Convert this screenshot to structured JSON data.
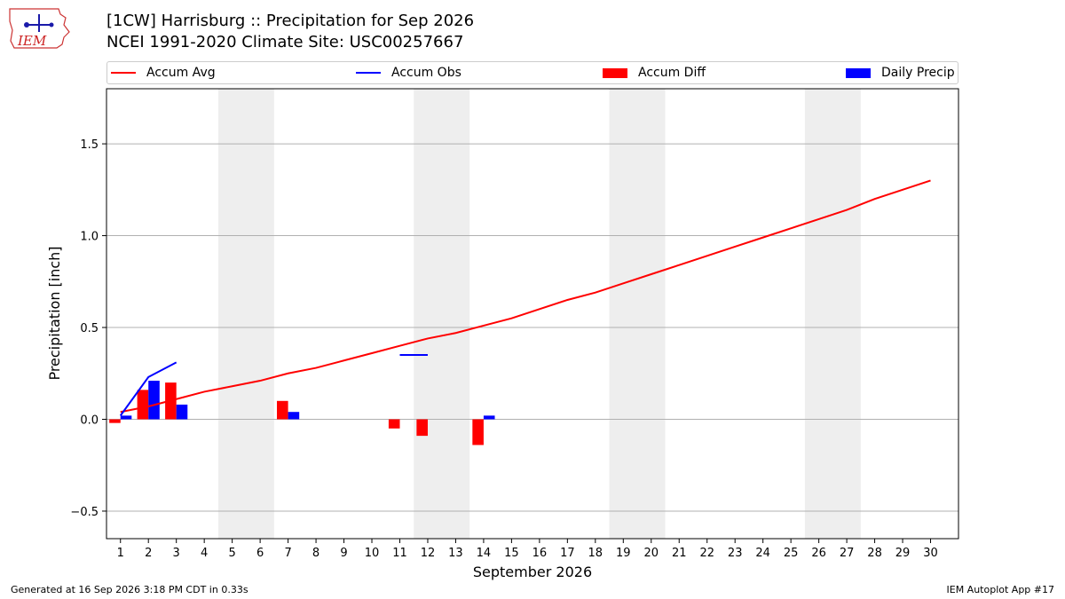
{
  "header": {
    "title_line1": "[1CW] Harrisburg :: Precipitation for Sep 2026",
    "title_line2": "NCEI 1991-2020 Climate Site: USC00257667",
    "logo_text": "IEM"
  },
  "legend": {
    "items": [
      {
        "label": "Accum Avg",
        "color": "#ff0000",
        "kind": "line"
      },
      {
        "label": "Accum Obs",
        "color": "#0000ff",
        "kind": "line"
      },
      {
        "label": "Accum Diff",
        "color": "#ff0000",
        "kind": "box"
      },
      {
        "label": "Daily Precip",
        "color": "#0000ff",
        "kind": "box"
      }
    ]
  },
  "footer": {
    "left": "Generated at 16 Sep 2026 3:18 PM CDT in 0.33s",
    "right": "IEM Autoplot App #17"
  },
  "chart_data": {
    "type": "bar",
    "xlabel": "September 2026",
    "ylabel": "Precipitation [inch]",
    "xlim": [
      0.5,
      31
    ],
    "ylim": [
      -0.65,
      1.8
    ],
    "x_ticks": [
      1,
      2,
      3,
      4,
      5,
      6,
      7,
      8,
      9,
      10,
      11,
      12,
      13,
      14,
      15,
      16,
      17,
      18,
      19,
      20,
      21,
      22,
      23,
      24,
      25,
      26,
      27,
      28,
      29,
      30
    ],
    "y_ticks": [
      -0.5,
      0.0,
      0.5,
      1.0,
      1.5
    ],
    "y_tick_labels": [
      "−0.5",
      "0.0",
      "0.5",
      "1.0",
      "1.5"
    ],
    "grid": "horizontal",
    "weekend_shading": [
      [
        5,
        6
      ],
      [
        12,
        13
      ],
      [
        19,
        20
      ],
      [
        26,
        27
      ]
    ],
    "shade_color": "#eeeeee",
    "accum_avg": {
      "name": "Accum Avg",
      "color": "#ff0000",
      "x": [
        1,
        2,
        3,
        4,
        5,
        6,
        7,
        8,
        9,
        10,
        11,
        12,
        13,
        14,
        15,
        16,
        17,
        18,
        19,
        20,
        21,
        22,
        23,
        24,
        25,
        26,
        27,
        28,
        29,
        30
      ],
      "values": [
        0.04,
        0.07,
        0.11,
        0.15,
        0.18,
        0.21,
        0.25,
        0.28,
        0.32,
        0.36,
        0.4,
        0.44,
        0.47,
        0.51,
        0.55,
        0.6,
        0.65,
        0.69,
        0.74,
        0.79,
        0.84,
        0.89,
        0.94,
        0.99,
        1.04,
        1.09,
        1.14,
        1.2,
        1.25,
        1.3
      ]
    },
    "accum_obs": {
      "name": "Accum Obs",
      "color": "#0000ff",
      "segments": [
        {
          "x": [
            1,
            2,
            3
          ],
          "values": [
            0.02,
            0.23,
            0.31
          ]
        },
        {
          "x": [
            11,
            12
          ],
          "values": [
            0.35,
            0.35
          ]
        }
      ]
    },
    "accum_diff": {
      "name": "Accum Diff",
      "color": "#ff0000",
      "x": [
        1,
        2,
        3,
        7,
        11,
        12,
        14
      ],
      "values": [
        -0.02,
        0.16,
        0.2,
        0.1,
        -0.05,
        -0.09,
        -0.14
      ]
    },
    "daily_precip": {
      "name": "Daily Precip",
      "color": "#0000ff",
      "x": [
        1,
        2,
        3,
        7,
        14
      ],
      "values": [
        0.02,
        0.21,
        0.08,
        0.04,
        0.02
      ]
    }
  }
}
